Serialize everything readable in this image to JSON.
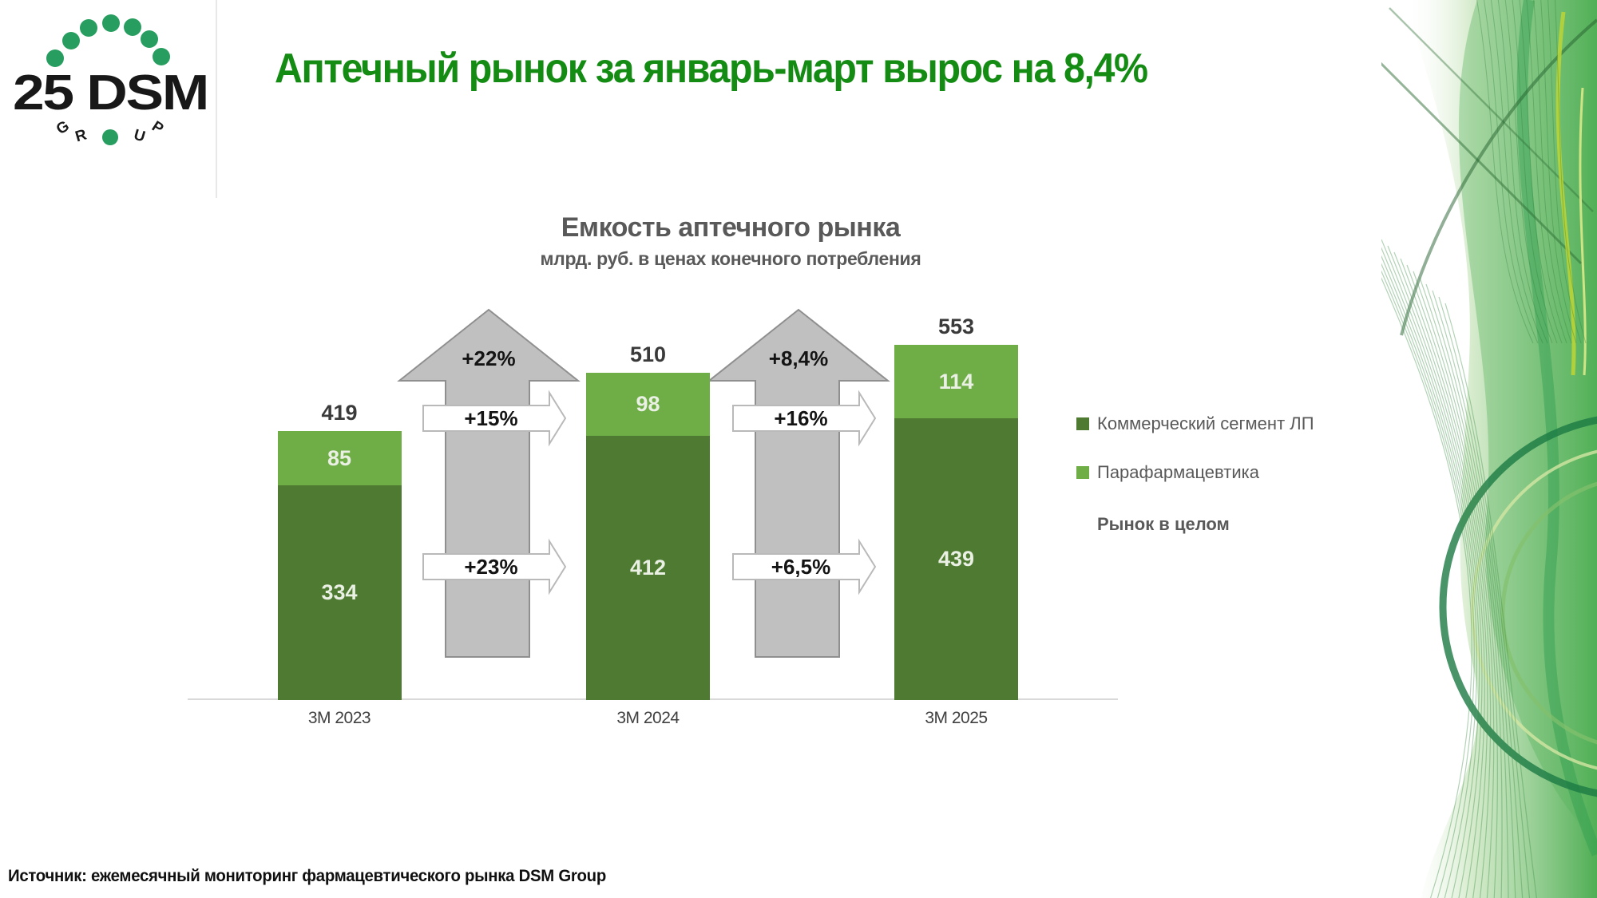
{
  "slide": {
    "title": "Аптечный рынок за январь-март вырос на 8,4%",
    "source": "Источник: ежемесячный мониторинг фармацевтического рынка DSM Group"
  },
  "logo": {
    "brand": "25 DSM",
    "group_letters": [
      "G",
      "R",
      "U",
      "P"
    ],
    "dot_color": "#279e60"
  },
  "chart_data": {
    "type": "bar",
    "stacked": true,
    "title": "Емкость аптечного рынка",
    "subtitle": "млрд. руб. в ценах конечного потребления",
    "categories": [
      "3М 2023",
      "3М 2024",
      "3М 2025"
    ],
    "series": [
      {
        "name": "Коммерческий сегмент ЛП",
        "color": "#4e7b31",
        "values": [
          334,
          412,
          439
        ]
      },
      {
        "name": "Парафармацевтика",
        "color": "#6fad47",
        "values": [
          85,
          98,
          114
        ]
      }
    ],
    "totals": [
      419,
      510,
      553
    ],
    "transitions": [
      {
        "total": "+22%",
        "parapharma": "+15%",
        "commercial": "+23%"
      },
      {
        "total": "+8,4%",
        "parapharma": "+16%",
        "commercial": "+6,5%"
      }
    ],
    "legend_items": [
      {
        "label": "Коммерческий сегмент ЛП",
        "swatch": "#4e7b31"
      },
      {
        "label": "Парафармацевтика",
        "swatch": "#6fad47"
      },
      {
        "label": "Рынок в целом",
        "swatch": null
      }
    ],
    "ylim": [
      0,
      560
    ],
    "grid": false,
    "legend_position": "right",
    "colors": {
      "title_green": "#148c14",
      "big_arrow_fill": "#c0c0c0",
      "big_arrow_stroke": "#8f8f8f",
      "white_arrow_stroke": "#b9b9b9",
      "axis_line": "#d9d9d9",
      "label_gray": "#595959"
    }
  }
}
